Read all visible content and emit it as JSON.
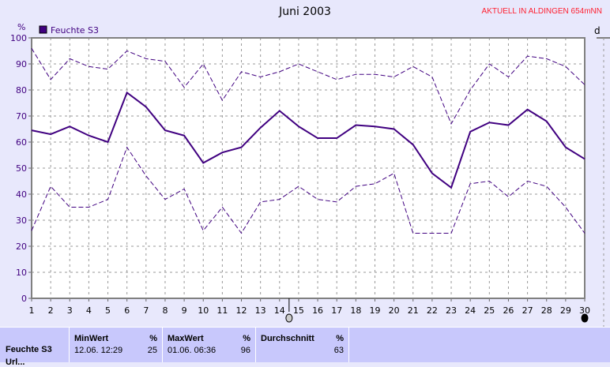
{
  "header": {
    "title": "Juni 2003",
    "station": "AKTUELL IN ALDINGEN 654mNN",
    "partial_label": "d"
  },
  "chart_data": {
    "type": "line",
    "title": "Juni 2003",
    "ylabel": "%",
    "ylim": [
      0,
      100
    ],
    "yticks": [
      "0",
      "10",
      "20",
      "30",
      "40",
      "50",
      "60",
      "70",
      "80",
      "90",
      "100"
    ],
    "xlim": [
      1,
      30
    ],
    "categories": [
      "1",
      "2",
      "3",
      "4",
      "5",
      "6",
      "7",
      "8",
      "9",
      "10",
      "11",
      "12",
      "13",
      "14",
      "15",
      "16",
      "17",
      "18",
      "19",
      "20",
      "21",
      "22",
      "23",
      "24",
      "25",
      "26",
      "27",
      "28",
      "29",
      "30"
    ],
    "grid": true,
    "legend": "top-left",
    "series": [
      {
        "name": "Feuchte S3",
        "color": "#400080",
        "values": [
          64.5,
          63,
          66,
          62.5,
          60,
          79,
          73.5,
          64.5,
          62.5,
          52,
          56,
          58,
          65.5,
          72,
          66,
          61.5,
          61.5,
          66.5,
          66,
          65,
          59,
          48,
          42.5,
          64,
          67.5,
          66.5,
          72.5,
          68,
          58,
          53.5
        ]
      },
      {
        "color": "#400080",
        "dashed": true,
        "values": [
          96,
          84,
          92,
          89,
          88,
          95,
          92,
          91,
          81,
          90,
          76,
          87,
          85,
          87,
          90,
          87,
          84,
          86,
          86,
          85,
          89,
          85,
          67,
          80,
          90,
          85,
          93,
          92,
          89,
          82
        ]
      },
      {
        "color": "#400080",
        "dashed": true,
        "values": [
          26,
          43,
          35,
          35,
          38,
          58,
          47,
          38,
          42,
          26,
          35,
          25,
          37,
          38,
          43,
          38,
          37,
          43,
          44,
          48,
          25,
          25,
          25,
          44,
          45,
          39,
          45,
          43,
          35,
          25
        ]
      }
    ],
    "moon_phases": [
      {
        "day": 14.5,
        "phase": "new-moon-icon"
      },
      {
        "day": 30,
        "phase": "full-moon-icon"
      }
    ]
  },
  "table": {
    "row_label": "Feuchte S3",
    "next_row_label": "Url...",
    "min": {
      "header": "MinWert",
      "unit": "%",
      "time": "12.06.  12:29",
      "value": "25"
    },
    "max": {
      "header": "MaxWert",
      "unit": "%",
      "time": "01.06.  06:36",
      "value": "96"
    },
    "avg": {
      "header": "Durchschnitt",
      "unit": "%",
      "value": "63"
    }
  }
}
